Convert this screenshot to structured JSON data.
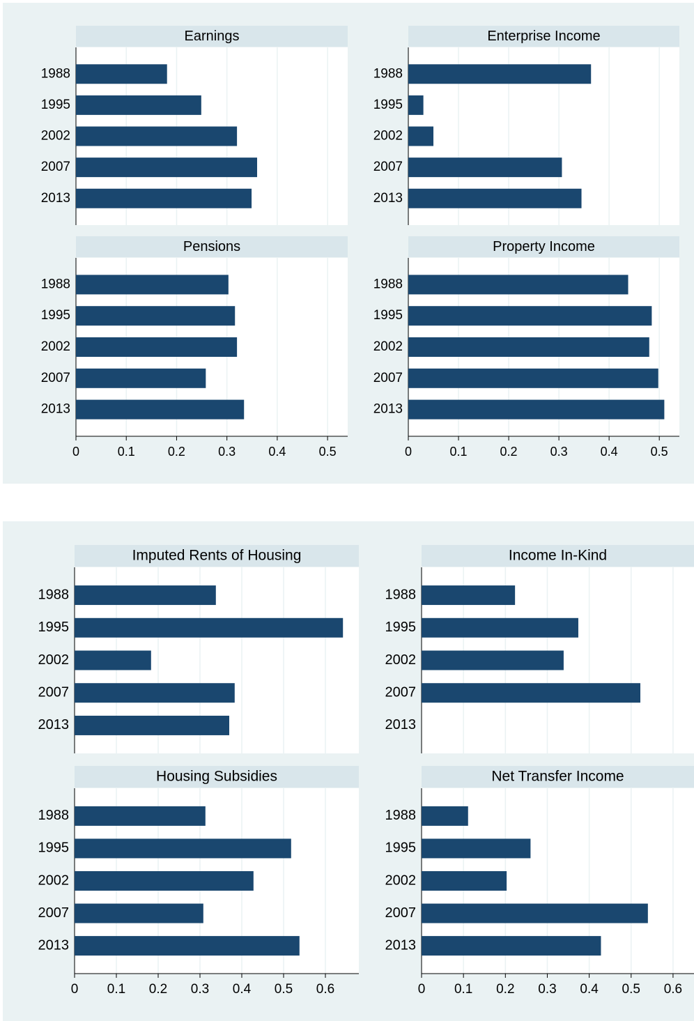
{
  "chart_data": [
    {
      "type": "bar",
      "orientation": "horizontal",
      "title": "Earnings",
      "categories": [
        "1988",
        "1995",
        "2002",
        "2007",
        "2013"
      ],
      "values": [
        0.181,
        0.249,
        0.32,
        0.36,
        0.349
      ],
      "color": "#1a476f",
      "xlim": [
        0,
        0.54
      ],
      "xticks": [
        0,
        0.1,
        0.2,
        0.3,
        0.4,
        0.5
      ],
      "grid": true
    },
    {
      "type": "bar",
      "orientation": "horizontal",
      "title": "Enterprise Income",
      "categories": [
        "1988",
        "1995",
        "2002",
        "2007",
        "2013"
      ],
      "values": [
        0.364,
        0.03,
        0.05,
        0.306,
        0.345
      ],
      "color": "#1a476f",
      "xlim": [
        0,
        0.54
      ],
      "xticks": [
        0,
        0.1,
        0.2,
        0.3,
        0.4,
        0.5
      ],
      "grid": true
    },
    {
      "type": "bar",
      "orientation": "horizontal",
      "title": "Pensions",
      "categories": [
        "1988",
        "1995",
        "2002",
        "2007",
        "2013"
      ],
      "values": [
        0.303,
        0.316,
        0.32,
        0.258,
        0.334
      ],
      "color": "#1a476f",
      "xlim": [
        0,
        0.54
      ],
      "xticks": [
        0,
        0.1,
        0.2,
        0.3,
        0.4,
        0.5
      ],
      "grid": true
    },
    {
      "type": "bar",
      "orientation": "horizontal",
      "title": "Property Income",
      "categories": [
        "1988",
        "1995",
        "2002",
        "2007",
        "2013"
      ],
      "values": [
        0.438,
        0.485,
        0.48,
        0.498,
        0.51
      ],
      "color": "#1a476f",
      "xlim": [
        0,
        0.54
      ],
      "xticks": [
        0,
        0.1,
        0.2,
        0.3,
        0.4,
        0.5
      ],
      "grid": true
    },
    {
      "type": "bar",
      "orientation": "horizontal",
      "title": "Imputed Rents of Housing",
      "categories": [
        "1988",
        "1995",
        "2002",
        "2007",
        "2013"
      ],
      "values": [
        0.338,
        0.642,
        0.183,
        0.383,
        0.37
      ],
      "color": "#1a476f",
      "xlim": [
        0,
        0.68
      ],
      "xticks": [
        0,
        0.1,
        0.2,
        0.3,
        0.4,
        0.5,
        0.6
      ],
      "grid": true
    },
    {
      "type": "bar",
      "orientation": "horizontal",
      "title": "Income In-Kind",
      "categories": [
        "1988",
        "1995",
        "2002",
        "2007",
        "2013"
      ],
      "values": [
        0.223,
        0.374,
        0.339,
        0.522,
        null
      ],
      "color": "#1a476f",
      "xlim": [
        0,
        0.65
      ],
      "xticks": [
        0,
        0.1,
        0.2,
        0.3,
        0.4,
        0.5,
        0.6
      ],
      "grid": true
    },
    {
      "type": "bar",
      "orientation": "horizontal",
      "title": "Housing Subsidies",
      "categories": [
        "1988",
        "1995",
        "2002",
        "2007",
        "2013"
      ],
      "values": [
        0.313,
        0.518,
        0.428,
        0.308,
        0.538
      ],
      "color": "#1a476f",
      "xlim": [
        0,
        0.68
      ],
      "xticks": [
        0,
        0.1,
        0.2,
        0.3,
        0.4,
        0.5,
        0.6
      ],
      "grid": true
    },
    {
      "type": "bar",
      "orientation": "horizontal",
      "title": "Net Transfer Income",
      "categories": [
        "1988",
        "1995",
        "2002",
        "2007",
        "2013"
      ],
      "values": [
        0.111,
        0.26,
        0.203,
        0.54,
        0.428
      ],
      "color": "#1a476f",
      "xlim": [
        0,
        0.65
      ],
      "xticks": [
        0,
        0.1,
        0.2,
        0.3,
        0.4,
        0.5,
        0.6
      ],
      "grid": true
    }
  ]
}
